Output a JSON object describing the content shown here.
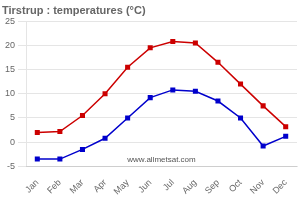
{
  "chart_data": {
    "type": "line",
    "title": "Tirstrup : temperatures (°C)",
    "categories": [
      "Jan",
      "Feb",
      "Mar",
      "Apr",
      "May",
      "Jun",
      "Jul",
      "Aug",
      "Sep",
      "Oct",
      "Nov",
      "Dec"
    ],
    "series": [
      {
        "color": "#cc0000",
        "marker": "square",
        "values": [
          2.0,
          2.2,
          5.5,
          10.0,
          15.5,
          19.5,
          20.8,
          20.5,
          16.5,
          12.0,
          7.5,
          3.2
        ]
      },
      {
        "color": "#0000cc",
        "marker": "square",
        "values": [
          -3.5,
          -3.5,
          -1.5,
          0.8,
          5.0,
          9.2,
          10.8,
          10.5,
          8.5,
          5.0,
          -0.8,
          1.2
        ]
      }
    ],
    "ylim": [
      -5,
      25
    ],
    "yticks": [
      -5,
      0,
      5,
      10,
      15,
      20,
      25
    ],
    "grid": true,
    "annotation": "www.allmetsat.com"
  }
}
